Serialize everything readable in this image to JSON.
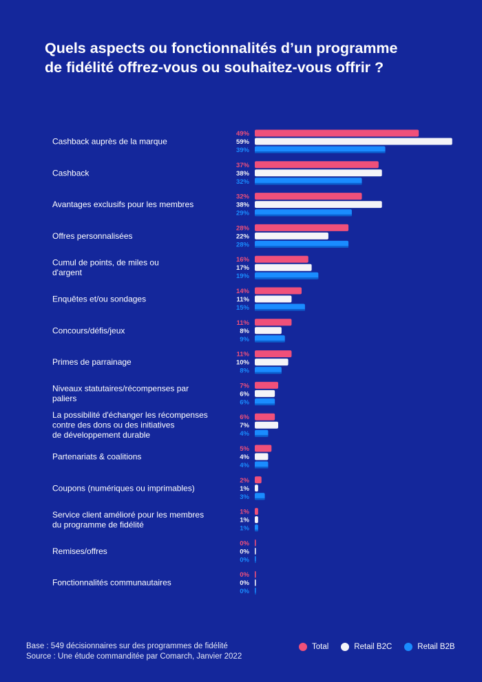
{
  "title": {
    "line1": "Quels aspects ou fonctionnalités d’un programme",
    "line2": "de fidélité offrez-vous ou souhaitez-vous offrir ?"
  },
  "colors": {
    "total": "#f0507a",
    "b2c": "#f4f4f8",
    "b2b": "#1a8cff",
    "background": "#14279b"
  },
  "footer": {
    "base": "Base : 549 décisionnaires sur des programmes de fidélité",
    "source": "Source : Une étude commanditée par Comarch, Janvier 2022"
  },
  "chart_data": {
    "type": "bar",
    "orientation": "horizontal",
    "categories": [
      [
        "Cashback auprès de la marque"
      ],
      [
        "Cashback"
      ],
      [
        "Avantages exclusifs pour les membres"
      ],
      [
        "Offres personnalisées"
      ],
      [
        "Cumul de points, de miles ou",
        "d'argent"
      ],
      [
        "Enquêtes et/ou sondages"
      ],
      [
        "Concours/défis/jeux"
      ],
      [
        "Primes de parrainage"
      ],
      [
        "Niveaux statutaires/récompenses par",
        "paliers"
      ],
      [
        "La possibilité d'échanger les récompenses",
        "contre des dons ou des initiatives",
        "de développement durable"
      ],
      [
        "Partenariats & coalitions"
      ],
      [
        "Coupons (numériques ou imprimables)"
      ],
      [
        "Service client amélioré pour les membres",
        "du programme de fidélité"
      ],
      [
        "Remises/offres"
      ],
      [
        "Fonctionnalités communautaires"
      ]
    ],
    "series": [
      {
        "name": "Total",
        "color": "#f0507a",
        "values": [
          49,
          37,
          32,
          28,
          16,
          14,
          11,
          11,
          7,
          6,
          5,
          2,
          1,
          0,
          0
        ]
      },
      {
        "name": "Retail B2C",
        "color": "#f4f4f8",
        "values": [
          59,
          38,
          38,
          22,
          17,
          11,
          8,
          10,
          6,
          7,
          4,
          1,
          1,
          0,
          0
        ]
      },
      {
        "name": "Retail B2B",
        "color": "#1a8cff",
        "values": [
          39,
          32,
          29,
          28,
          19,
          15,
          9,
          8,
          6,
          4,
          4,
          3,
          1,
          0,
          0
        ]
      }
    ],
    "value_suffix": "%",
    "xlim": [
      0,
      60
    ],
    "legend_position": "bottom-right"
  }
}
